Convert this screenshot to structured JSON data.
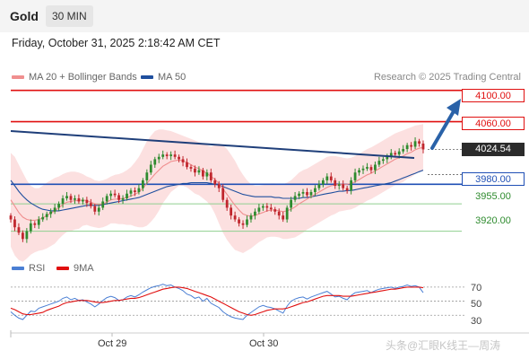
{
  "header": {
    "instrument": "Gold",
    "timeframe": "30 MIN"
  },
  "datetime": "Friday, October 31, 2025 2:18:42 AM CET",
  "legend": {
    "items": [
      {
        "label": "MA 20 + Bollinger Bands",
        "color": "#f08f8f"
      },
      {
        "label": "MA 50",
        "color": "#1f4f9e"
      }
    ],
    "rsi_items": [
      {
        "label": "RSI",
        "color": "#4a7fd4"
      },
      {
        "label": "9MA",
        "color": "#e01010"
      }
    ]
  },
  "copyright": "Research © 2025 Trading Central",
  "colors": {
    "resistance": "#e01010",
    "support": "#1f4fb5",
    "minor_support": "#8fcf8f",
    "candle_up": "#2e8b2e",
    "candle_down": "#c0262d",
    "band": "#fbd5d5",
    "trendline": "#1f3f7a"
  },
  "chart_data": [
    {
      "type": "candlestick",
      "title": "Gold",
      "timeframe": "30 MIN",
      "x_tick_labels": [
        "Oct 29",
        "Oct 30"
      ],
      "ylim": [
        3900,
        4110
      ],
      "levels": [
        {
          "label": "4100.00",
          "value": 4100,
          "kind": "resistance"
        },
        {
          "label": "4060.00",
          "value": 4060,
          "kind": "resistance"
        },
        {
          "label": "4024.54",
          "value": 4024.54,
          "kind": "last_price"
        },
        {
          "label": "3980.00",
          "value": 3980,
          "kind": "support"
        },
        {
          "label": "3955.00",
          "value": 3955,
          "kind": "minor_support"
        },
        {
          "label": "3920.00",
          "value": 3920,
          "kind": "minor_support"
        }
      ],
      "close": [
        3935,
        3925,
        3918,
        3910,
        3920,
        3930,
        3928,
        3935,
        3938,
        3942,
        3945,
        3950,
        3955,
        3962,
        3965,
        3960,
        3962,
        3958,
        3960,
        3956,
        3952,
        3945,
        3950,
        3958,
        3965,
        3968,
        3966,
        3960,
        3962,
        3968,
        3972,
        3970,
        3975,
        3985,
        3995,
        4005,
        4012,
        4015,
        4018,
        4016,
        4018,
        4015,
        4012,
        4008,
        4002,
        4000,
        3995,
        3998,
        3990,
        3995,
        3985,
        3980,
        3975,
        3960,
        3950,
        3940,
        3935,
        3930,
        3928,
        3935,
        3940,
        3945,
        3950,
        3952,
        3950,
        3948,
        3945,
        3940,
        3935,
        3950,
        3960,
        3965,
        3968,
        3970,
        3966,
        3970,
        3975,
        3980,
        3985,
        3990,
        3985,
        3978,
        3980,
        3975,
        3972,
        3985,
        3995,
        3998,
        4000,
        4002,
        3998,
        4005,
        4010,
        4012,
        4015,
        4020,
        4018,
        4022,
        4025,
        4030,
        4028,
        4035,
        4032,
        4024.54
      ],
      "ma20": [
        3960,
        3952,
        3944,
        3938,
        3935,
        3934,
        3934,
        3935,
        3937,
        3940,
        3943,
        3946,
        3950,
        3954,
        3957,
        3958,
        3959,
        3959,
        3960,
        3959,
        3957,
        3955,
        3954,
        3955,
        3957,
        3960,
        3961,
        3961,
        3962,
        3963,
        3965,
        3967,
        3970,
        3975,
        3981,
        3987,
        3993,
        3998,
        4003,
        4006,
        4009,
        4010,
        4011,
        4010,
        4008,
        4005,
        4002,
        4000,
        3997,
        3994,
        3990,
        3986,
        3981,
        3974,
        3967,
        3960,
        3953,
        3947,
        3942,
        3940,
        3939,
        3940,
        3942,
        3944,
        3946,
        3947,
        3947,
        3946,
        3945,
        3946,
        3948,
        3951,
        3955,
        3958,
        3961,
        3964,
        3967,
        3970,
        3973,
        3976,
        3978,
        3979,
        3980,
        3980,
        3980,
        3981,
        3983,
        3986,
        3989,
        3992,
        3994,
        3997,
        4000,
        4003,
        4006,
        4009,
        4012,
        4014,
        4016,
        4019,
        4021,
        4024,
        4026,
        4027
      ],
      "ma50": [
        3985,
        3978,
        3971,
        3965,
        3960,
        3956,
        3953,
        3950,
        3948,
        3947,
        3946,
        3946,
        3946,
        3947,
        3948,
        3949,
        3950,
        3951,
        3952,
        3953,
        3953,
        3953,
        3953,
        3954,
        3955,
        3956,
        3957,
        3958,
        3959,
        3960,
        3961,
        3962,
        3963,
        3965,
        3967,
        3969,
        3971,
        3973,
        3975,
        3977,
        3978,
        3979,
        3980,
        3981,
        3981,
        3982,
        3982,
        3982,
        3982,
        3982,
        3981,
        3980,
        3979,
        3977,
        3975,
        3973,
        3971,
        3969,
        3967,
        3966,
        3965,
        3964,
        3964,
        3964,
        3964,
        3964,
        3963,
        3963,
        3962,
        3962,
        3962,
        3962,
        3962,
        3963,
        3963,
        3964,
        3965,
        3966,
        3967,
        3968,
        3969,
        3970,
        3971,
        3971,
        3972,
        3972,
        3973,
        3974,
        3975,
        3976,
        3977,
        3978,
        3979,
        3980,
        3981,
        3982,
        3984,
        3986,
        3988,
        3990,
        3992,
        3994,
        3996,
        3998
      ],
      "bb_upper": [
        4020,
        4015,
        4005,
        3995,
        3985,
        3978,
        3975,
        3975,
        3978,
        3982,
        3985,
        3988,
        3990,
        3993,
        3995,
        3996,
        3996,
        3995,
        3993,
        3990,
        3988,
        3985,
        3984,
        3985,
        3987,
        3990,
        3992,
        3993,
        3995,
        3998,
        4002,
        4008,
        4015,
        4025,
        4035,
        4042,
        4048,
        4050,
        4050,
        4049,
        4048,
        4046,
        4044,
        4042,
        4040,
        4038,
        4036,
        4034,
        4032,
        4030,
        4028,
        4030,
        4032,
        4030,
        4025,
        4018,
        4010,
        4000,
        3992,
        3985,
        3980,
        3978,
        3978,
        3979,
        3980,
        3981,
        3981,
        3980,
        3980,
        3982,
        3985,
        3990,
        3995,
        3998,
        4000,
        4003,
        4006,
        4009,
        4012,
        4015,
        4016,
        4016,
        4015,
        4014,
        4013,
        4014,
        4016,
        4019,
        4022,
        4025,
        4027,
        4030,
        4033,
        4036,
        4039,
        4042,
        4045,
        4047,
        4049,
        4051,
        4053,
        4055,
        4056,
        4057
      ],
      "bb_lower": [
        3900,
        3889,
        3883,
        3881,
        3885,
        3890,
        3893,
        3895,
        3896,
        3898,
        3901,
        3904,
        3910,
        3915,
        3919,
        3920,
        3922,
        3923,
        3927,
        3928,
        3926,
        3925,
        3924,
        3925,
        3927,
        3930,
        3930,
        3929,
        3929,
        3928,
        3928,
        3926,
        3925,
        3925,
        3927,
        3932,
        3938,
        3946,
        3956,
        3963,
        3970,
        3974,
        3978,
        3978,
        3976,
        3972,
        3968,
        3966,
        3962,
        3958,
        3952,
        3942,
        3930,
        3918,
        3909,
        3902,
        3896,
        3894,
        3892,
        3895,
        3898,
        3902,
        3906,
        3909,
        3912,
        3913,
        3913,
        3912,
        3910,
        3910,
        3911,
        3912,
        3915,
        3918,
        3922,
        3925,
        3928,
        3931,
        3934,
        3937,
        3940,
        3942,
        3945,
        3946,
        3947,
        3948,
        3950,
        3953,
        3956,
        3959,
        3961,
        3964,
        3967,
        3970,
        3973,
        3976,
        3979,
        3981,
        3983,
        3987,
        3989,
        3993,
        3996,
        3997
      ]
    },
    {
      "type": "line",
      "title": "RSI",
      "y_tick_labels": [
        "70",
        "50",
        "30"
      ],
      "ylim": [
        10,
        80
      ],
      "series": [
        {
          "name": "RSI",
          "values": [
            35,
            30,
            26,
            24,
            30,
            36,
            35,
            40,
            42,
            44,
            46,
            48,
            50,
            54,
            56,
            52,
            54,
            51,
            52,
            49,
            46,
            42,
            46,
            51,
            55,
            57,
            55,
            51,
            52,
            56,
            58,
            56,
            59,
            63,
            66,
            69,
            71,
            72,
            74,
            72,
            73,
            70,
            68,
            65,
            60,
            58,
            54,
            56,
            50,
            54,
            47,
            44,
            41,
            35,
            31,
            28,
            26,
            25,
            24,
            30,
            34,
            38,
            42,
            44,
            42,
            41,
            39,
            36,
            33,
            43,
            50,
            53,
            55,
            56,
            53,
            56,
            58,
            60,
            62,
            64,
            60,
            56,
            57,
            54,
            52,
            58,
            62,
            63,
            64,
            65,
            62,
            65,
            67,
            68,
            69,
            70,
            68,
            70,
            71,
            73,
            71,
            72,
            70,
            62
          ]
        },
        {
          "name": "9MA",
          "values": [
            40,
            38,
            35,
            32,
            31,
            31,
            32,
            33,
            34,
            37,
            39,
            41,
            43,
            46,
            48,
            49,
            50,
            51,
            51,
            51,
            50,
            49,
            48,
            48,
            49,
            50,
            51,
            51,
            52,
            53,
            54,
            54,
            55,
            57,
            59,
            61,
            63,
            65,
            67,
            68,
            69,
            70,
            70,
            69,
            68,
            66,
            64,
            62,
            60,
            58,
            56,
            53,
            50,
            47,
            44,
            41,
            38,
            35,
            33,
            31,
            30,
            31,
            33,
            35,
            37,
            38,
            39,
            39,
            39,
            40,
            42,
            44,
            46,
            48,
            49,
            51,
            53,
            55,
            57,
            58,
            58,
            58,
            58,
            57,
            57,
            57,
            58,
            59,
            60,
            61,
            62,
            63,
            64,
            65,
            66,
            67,
            67,
            68,
            69,
            70,
            70,
            70,
            70,
            69
          ]
        }
      ]
    }
  ],
  "watermark": "头条@汇眼K线王—周涛"
}
